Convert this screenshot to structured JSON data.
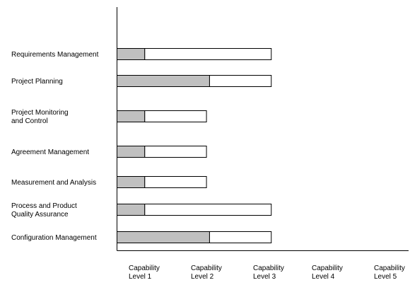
{
  "chart_data": {
    "type": "bar",
    "orientation": "horizontal",
    "stacked": true,
    "categories": [
      [
        "Requirements Management"
      ],
      [
        "Project Planning"
      ],
      [
        "Project Monitoring",
        "and Control"
      ],
      [
        "Agreement Management"
      ],
      [
        "Measurement and Analysis"
      ],
      [
        "Process and Product",
        "Quality Assurance"
      ],
      [
        "Configuration Management"
      ]
    ],
    "series": [
      {
        "values": [
          0.45,
          1.5,
          0.45,
          0.45,
          0.45,
          0.45,
          1.5
        ],
        "color": "#c0c0c0"
      },
      {
        "values": [
          2.05,
          1.0,
          1.0,
          1.0,
          1.0,
          2.05,
          1.0
        ],
        "color": "#ffffff"
      }
    ],
    "x_ticks": [
      [
        "Capability",
        "Level 1"
      ],
      [
        "Capability",
        "Level 2"
      ],
      [
        "Capability",
        "Level 3"
      ],
      [
        "Capability",
        "Level 4"
      ],
      [
        "Capability",
        "Level 5"
      ]
    ],
    "xlim": [
      0,
      4.7
    ],
    "grid": false,
    "legend": "none"
  }
}
